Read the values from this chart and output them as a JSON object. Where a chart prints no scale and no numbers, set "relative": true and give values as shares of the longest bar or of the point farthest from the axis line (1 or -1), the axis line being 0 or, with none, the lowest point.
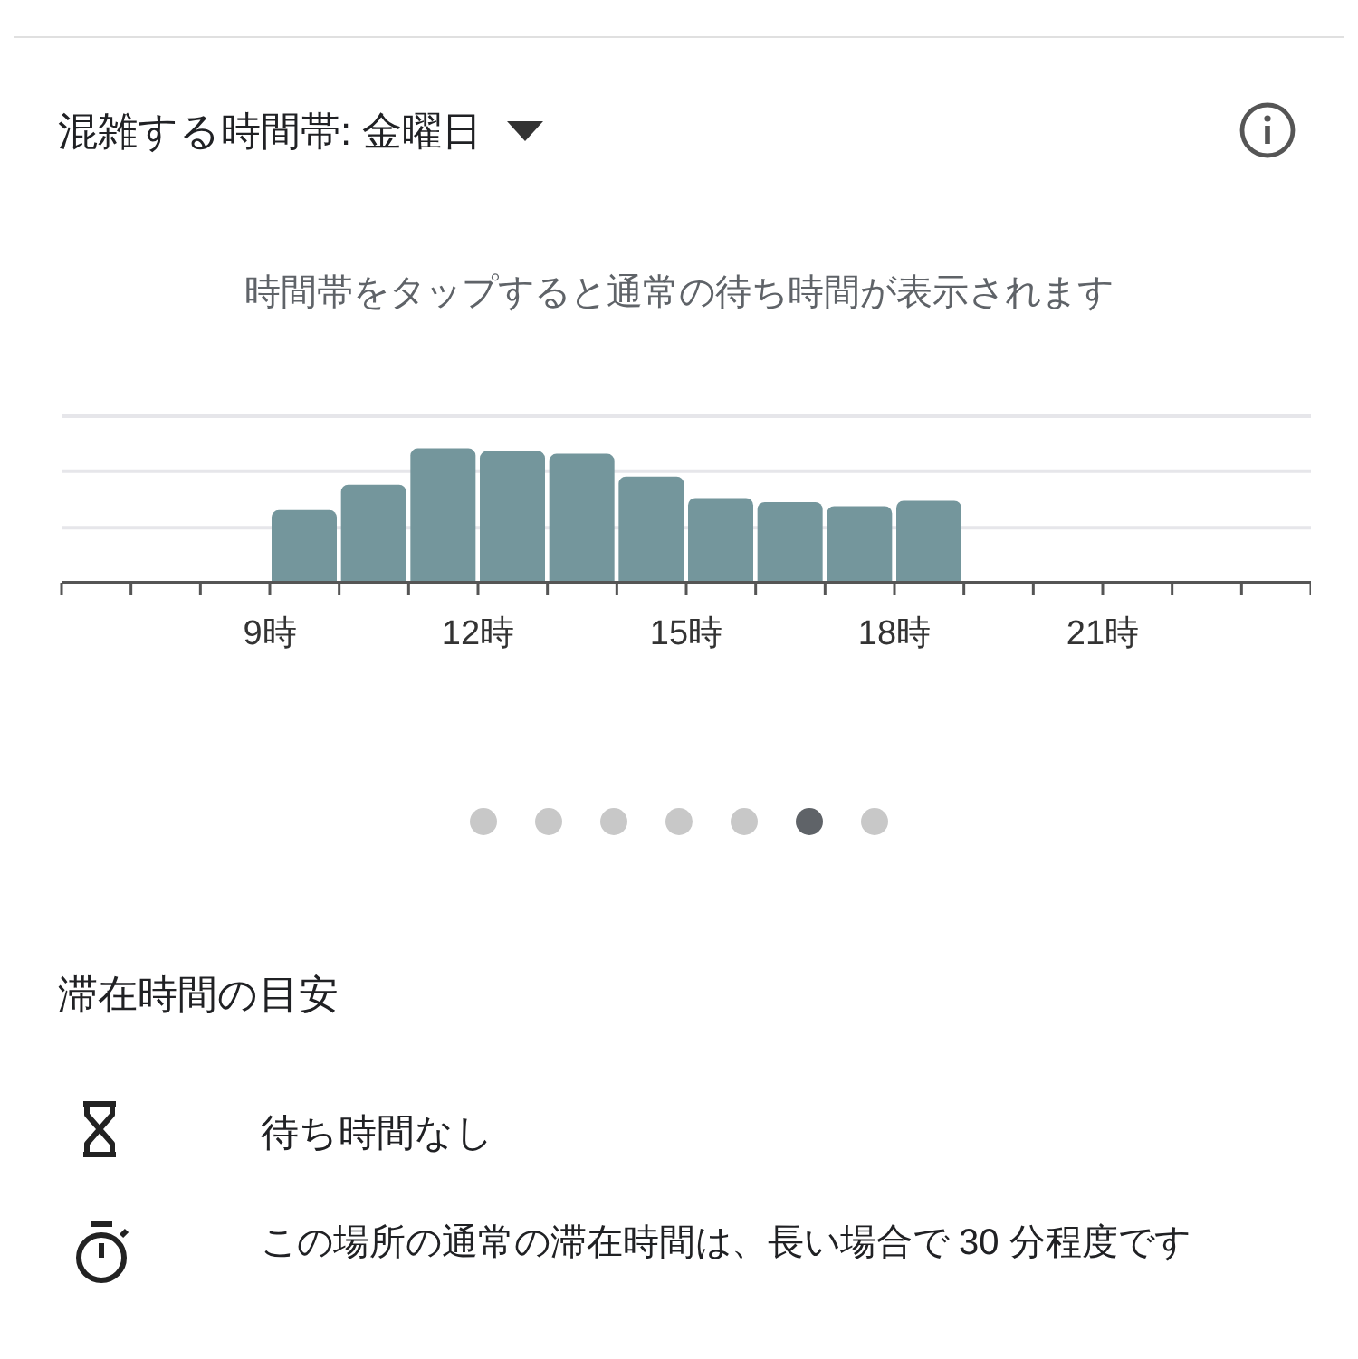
{
  "chart_data": {
    "type": "bar",
    "title": "混雑する時間帯: 金曜日",
    "subtitle": "時間帯をタップすると通常の待ち時間が表示されます",
    "relative": true,
    "categories": [
      null,
      null,
      null,
      "9時",
      null,
      null,
      "12時",
      null,
      null,
      "15時",
      null,
      null,
      "18時",
      null,
      null,
      "21時",
      null,
      null
    ],
    "values": [
      0,
      0,
      0,
      0.54,
      0.73,
      1,
      0.98,
      0.96,
      0.79,
      0.63,
      0.6,
      0.57,
      0.61,
      0,
      0,
      0,
      0,
      0
    ],
    "color": "#74969c",
    "legend": false,
    "ref_lines": [
      {
        "axis": "y",
        "value": 0.41,
        "color": "#e6e6ea"
      },
      {
        "axis": "y",
        "value": 0.83,
        "color": "#e6e6ea"
      },
      {
        "axis": "y",
        "value": 1.24,
        "color": "#e6e6ea"
      }
    ],
    "annotations": [
      "滞在時間の目安",
      "待ち時間なし",
      "この場所の通常の滞在時間は、長い場合で 30 分程度です"
    ]
  }
}
